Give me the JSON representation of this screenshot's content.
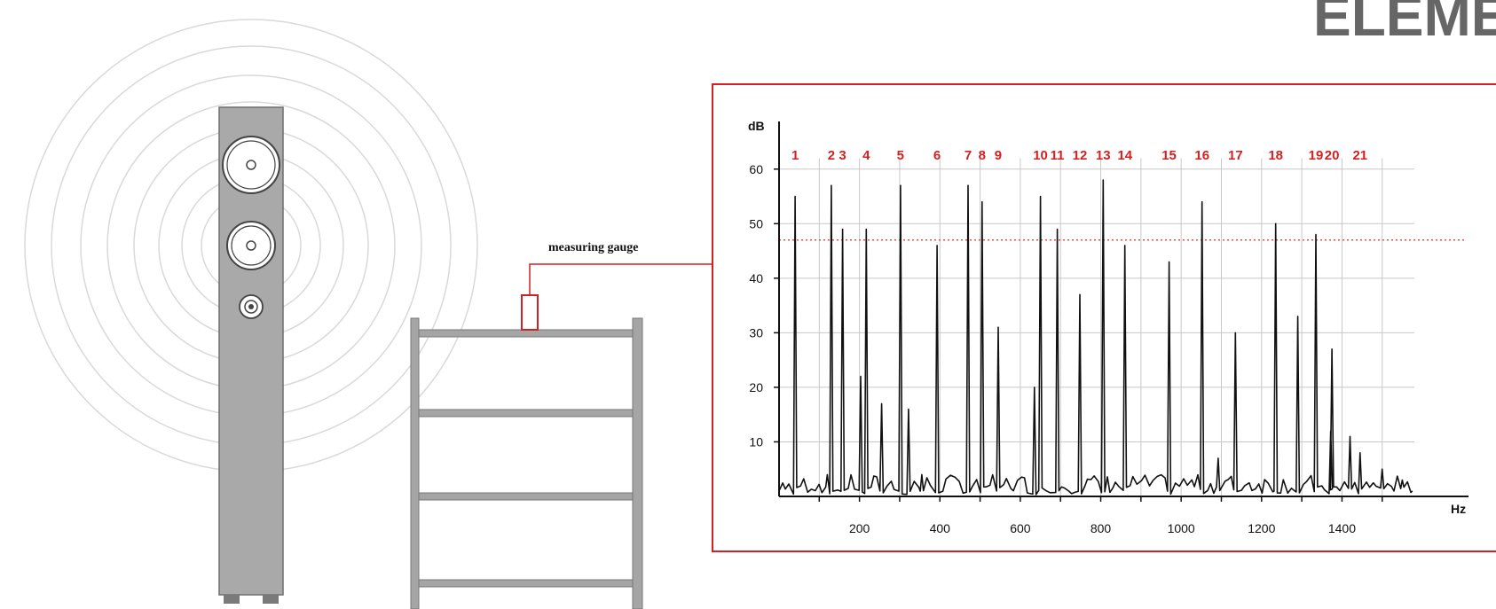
{
  "brand": {
    "text": "ELEMENT"
  },
  "gauge": {
    "label": "measuring gauge"
  },
  "colors": {
    "frame": "#d42020",
    "peak_numbers": "#d42020",
    "threshold": "#e05050",
    "speaker": "#a9a9a9",
    "rack": "#a5a5a5",
    "rings": "#d9d9d9",
    "grid": "#c8c8c8",
    "trace": "#111111"
  },
  "chart_data": {
    "type": "line",
    "xlabel": "Hz",
    "ylabel": "dB",
    "xlim": [
      0,
      1580
    ],
    "ylim": [
      0,
      65
    ],
    "x_ticks": [
      200,
      400,
      600,
      800,
      1000,
      1200,
      1400
    ],
    "y_ticks": [
      10,
      20,
      30,
      40,
      50,
      60
    ],
    "grid": true,
    "threshold_db": 47,
    "peaks": [
      {
        "label": "1",
        "x": 40,
        "y": 55
      },
      {
        "label": "2",
        "x": 130,
        "y": 57
      },
      {
        "label": "3",
        "x": 158,
        "y": 49
      },
      {
        "label": "4",
        "x": 217,
        "y": 49
      },
      {
        "label": "5",
        "x": 302,
        "y": 57
      },
      {
        "label": "6",
        "x": 393,
        "y": 46
      },
      {
        "label": "7",
        "x": 470,
        "y": 57
      },
      {
        "label": "8",
        "x": 505,
        "y": 54
      },
      {
        "label": "9",
        "x": 545,
        "y": 31
      },
      {
        "label": "10",
        "x": 650,
        "y": 55
      },
      {
        "label": "11",
        "x": 692,
        "y": 49
      },
      {
        "label": "12",
        "x": 748,
        "y": 37
      },
      {
        "label": "13",
        "x": 806,
        "y": 58
      },
      {
        "label": "14",
        "x": 860,
        "y": 46
      },
      {
        "label": "15",
        "x": 970,
        "y": 43
      },
      {
        "label": "16",
        "x": 1052,
        "y": 54
      },
      {
        "label": "17",
        "x": 1135,
        "y": 30
      },
      {
        "label": "18",
        "x": 1235,
        "y": 50
      },
      {
        "label": "19",
        "x": 1335,
        "y": 48
      },
      {
        "label": "20",
        "x": 1375,
        "y": 27
      },
      {
        "label": "21",
        "x": 1445,
        "y": 8
      }
    ],
    "minor_peaks": [
      {
        "x": 120,
        "y": 4
      },
      {
        "x": 203,
        "y": 22
      },
      {
        "x": 255,
        "y": 17
      },
      {
        "x": 322,
        "y": 16
      },
      {
        "x": 355,
        "y": 4
      },
      {
        "x": 635,
        "y": 20
      },
      {
        "x": 1092,
        "y": 7
      },
      {
        "x": 1290,
        "y": 33
      },
      {
        "x": 1372,
        "y": 12
      },
      {
        "x": 1420,
        "y": 11
      },
      {
        "x": 1500,
        "y": 5
      },
      {
        "x": 1550,
        "y": 3
      }
    ]
  }
}
